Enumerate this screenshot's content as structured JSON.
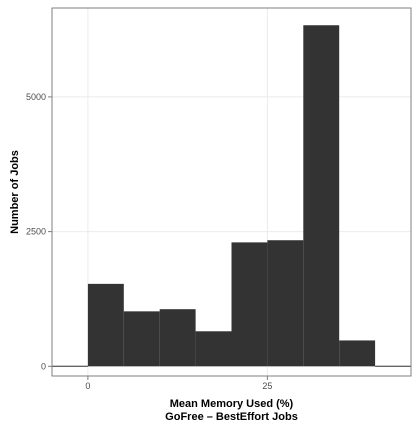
{
  "chart_data": {
    "type": "bar",
    "subtype": "histogram",
    "x": {
      "label": "Mean Memory Used (%)",
      "sublabel": "GoFree – BestEffort Jobs",
      "range": [
        -5,
        45
      ],
      "ticks": [
        0,
        25
      ],
      "tick_labels": [
        "0",
        "25"
      ]
    },
    "y": {
      "label": "Number of Jobs",
      "range": [
        -180,
        6650
      ],
      "ticks": [
        0,
        2500,
        5000
      ],
      "tick_labels": [
        "0",
        "2500",
        "5000"
      ]
    },
    "bins": [
      {
        "start": -5,
        "end": 0,
        "count": 0
      },
      {
        "start": 0,
        "end": 5,
        "count": 1530
      },
      {
        "start": 5,
        "end": 10,
        "count": 1020
      },
      {
        "start": 10,
        "end": 15,
        "count": 1060
      },
      {
        "start": 15,
        "end": 20,
        "count": 650
      },
      {
        "start": 20,
        "end": 25,
        "count": 2300
      },
      {
        "start": 25,
        "end": 30,
        "count": 2340
      },
      {
        "start": 30,
        "end": 35,
        "count": 6330
      },
      {
        "start": 35,
        "end": 40,
        "count": 480
      },
      {
        "start": 40,
        "end": 45,
        "count": 0
      }
    ],
    "grid": true,
    "bar_color": "#333333",
    "grid_color": "#ebebeb",
    "panel_border_color": "#7f7f7f"
  }
}
